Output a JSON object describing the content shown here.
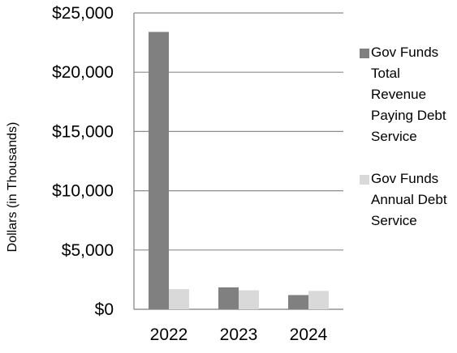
{
  "chart_data": {
    "type": "bar",
    "title": "",
    "xlabel": "",
    "ylabel": "Dollars (in Thousands)",
    "categories": [
      "2022",
      "2023",
      "2024"
    ],
    "ylim": [
      0,
      25000
    ],
    "yticks": [
      0,
      5000,
      10000,
      15000,
      20000,
      25000
    ],
    "ytick_labels": [
      "$0",
      "$5,000",
      "$10,000",
      "$15,000",
      "$20,000",
      "$25,000"
    ],
    "grid": "horizontal",
    "legend_position": "right",
    "series": [
      {
        "name": "Gov Funds Total Revenue Paying Debt Service",
        "color": "#808080",
        "values": [
          23400,
          1850,
          1200
        ]
      },
      {
        "name": "Gov Funds Annual Debt Service",
        "color": "#d9d9d9",
        "values": [
          1700,
          1600,
          1550
        ]
      }
    ]
  }
}
